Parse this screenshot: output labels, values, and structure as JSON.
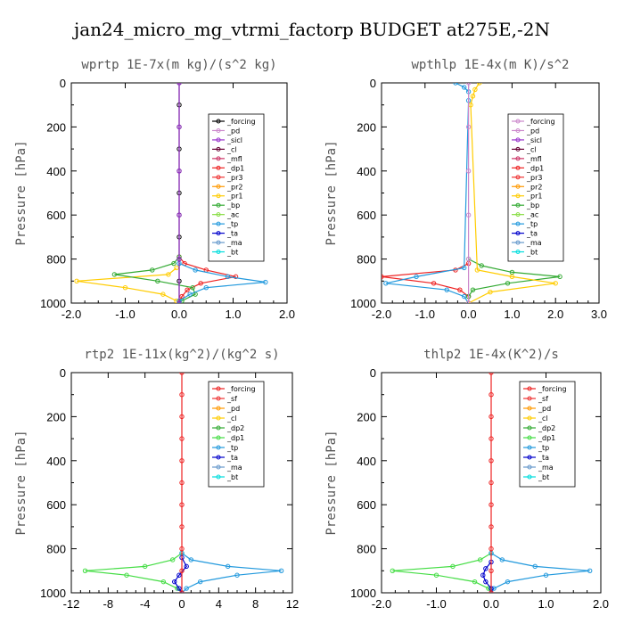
{
  "title": "jan24_micro_mg_vtrmi_factorp  BUDGET at275E,-2N",
  "chart_data": [
    {
      "type": "line",
      "panel": "wprtp",
      "title": "wprtp   1E-7x(m kg)/(s^2 kg)",
      "ylabel": "Pressure [hPa]",
      "xlim": [
        -2.0,
        2.0
      ],
      "ylim": [
        1000,
        0
      ],
      "xticks": [
        "-2.0",
        "-1.0",
        "0.0",
        "1.0",
        "2.0"
      ],
      "yticks": [
        "0",
        "200",
        "400",
        "600",
        "800",
        "1000"
      ],
      "legend": [
        "_forcing",
        "_pd",
        "_sicl",
        "_cl",
        "_mfl",
        "_dp1",
        "_pr3",
        "_pr2",
        "_pr1",
        "_bp",
        "_ac",
        "_tp",
        "_ta",
        "_ma",
        "_bt"
      ],
      "legend_colors": [
        "#000000",
        "#cc88cc",
        "#9933cc",
        "#660033",
        "#cc3366",
        "#ee2222",
        "#ee3333",
        "#ff9900",
        "#ffcc00",
        "#33aa33",
        "#88dd44",
        "#2299dd",
        "#0000cc",
        "#6699cc",
        "#00dddd"
      ],
      "series": [
        {
          "name": "_dp1",
          "color": "#ee2222",
          "p": [
            790,
            820,
            850,
            880,
            910,
            940,
            970,
            1000
          ],
          "values": [
            0.0,
            0.1,
            0.5,
            1.05,
            0.4,
            0.15,
            0.05,
            0.0
          ]
        },
        {
          "name": "_pr1",
          "color": "#ffcc00",
          "p": [
            840,
            870,
            900,
            930,
            960,
            990,
            1000
          ],
          "values": [
            -0.05,
            -0.2,
            -1.9,
            -1.0,
            -0.3,
            -0.05,
            0.0
          ]
        },
        {
          "name": "_bp",
          "color": "#33aa33",
          "p": [
            790,
            820,
            850,
            870,
            900,
            930,
            960,
            990,
            1000
          ],
          "values": [
            0.0,
            -0.1,
            -0.5,
            -1.2,
            -0.4,
            0.25,
            0.3,
            0.05,
            0.0
          ]
        },
        {
          "name": "_tp",
          "color": "#2299dd",
          "p": [
            820,
            850,
            880,
            905,
            930,
            960,
            990,
            1000
          ],
          "values": [
            0.0,
            0.3,
            0.9,
            1.6,
            0.5,
            0.2,
            0.0,
            0.0
          ]
        },
        {
          "name": "_forcing",
          "color": "#000000",
          "p": [
            0,
            100,
            200,
            300,
            400,
            500,
            600,
            700,
            800,
            900,
            1000
          ],
          "values": [
            0,
            0,
            0,
            0,
            0,
            0,
            0,
            0,
            0,
            0,
            0
          ]
        },
        {
          "name": "_sicl",
          "color": "#9933cc",
          "p": [
            0,
            200,
            400,
            600,
            800,
            1000
          ],
          "values": [
            0,
            0,
            0,
            0,
            0,
            0
          ]
        }
      ]
    },
    {
      "type": "line",
      "panel": "wpthlp",
      "title": "wpthlp   1E-4x(m K)/s^2",
      "ylabel": "Pressure [hPa]",
      "xlim": [
        -2.0,
        3.0
      ],
      "ylim": [
        1000,
        0
      ],
      "xticks": [
        "-2.0",
        "-1.0",
        "0.0",
        "1.0",
        "2.0",
        "3.0"
      ],
      "yticks": [
        "0",
        "200",
        "400",
        "600",
        "800",
        "1000"
      ],
      "legend": [
        "_forcing",
        "_pd",
        "_sicl",
        "_cl",
        "_mfl",
        "_dp1",
        "_pr3",
        "_pr2",
        "_pr1",
        "_bp",
        "_ac",
        "_tp",
        "_ta",
        "_ma",
        "_bt"
      ],
      "legend_colors": [
        "#cc88cc",
        "#cc88cc",
        "#9933cc",
        "#660033",
        "#cc3366",
        "#ee2222",
        "#ee3333",
        "#ff9900",
        "#ffcc00",
        "#33aa33",
        "#88dd44",
        "#2299dd",
        "#0000cc",
        "#6699cc",
        "#00dddd"
      ],
      "series": [
        {
          "name": "_dp1",
          "color": "#ee2222",
          "p": [
            820,
            850,
            880,
            910,
            940,
            970,
            1000
          ],
          "values": [
            0.0,
            -0.3,
            -2.0,
            -0.8,
            -0.2,
            0.0,
            0.0
          ]
        },
        {
          "name": "_tp",
          "color": "#2299dd",
          "p": [
            0,
            20,
            40,
            80,
            840,
            880,
            910,
            940,
            970,
            1000
          ],
          "values": [
            -0.3,
            -0.1,
            0.0,
            0.0,
            -0.1,
            -1.2,
            -1.9,
            -0.5,
            -0.1,
            0.0
          ]
        },
        {
          "name": "_bp",
          "color": "#33aa33",
          "p": [
            800,
            830,
            860,
            880,
            910,
            940,
            970,
            1000
          ],
          "values": [
            0.0,
            0.3,
            1.0,
            2.1,
            0.9,
            0.1,
            0.0,
            0.0
          ]
        },
        {
          "name": "_pr1",
          "color": "#ffcc00",
          "p": [
            0,
            30,
            60,
            100,
            850,
            880,
            910,
            950,
            1000
          ],
          "values": [
            0.25,
            0.15,
            0.1,
            0.05,
            0.2,
            1.0,
            2.0,
            0.5,
            0.0
          ]
        },
        {
          "name": "_forcing",
          "color": "#cc88cc",
          "p": [
            0,
            200,
            400,
            600,
            800,
            1000
          ],
          "values": [
            0,
            0,
            0,
            0,
            0,
            0
          ]
        }
      ]
    },
    {
      "type": "line",
      "panel": "rtp2",
      "title": "rtp2   1E-11x(kg^2)/(kg^2 s)",
      "ylabel": "Pressure [hPa]",
      "xlim": [
        -12,
        12
      ],
      "ylim": [
        1000,
        0
      ],
      "xticks": [
        "-12",
        "-8",
        "-4",
        "0",
        "4",
        "8",
        "12"
      ],
      "yticks": [
        "0",
        "200",
        "400",
        "600",
        "800",
        "1000"
      ],
      "legend": [
        "_forcing",
        "_sf",
        "_pd",
        "_cl",
        "_dp2",
        "_dp1",
        "_tp",
        "_ta",
        "_ma",
        "_bt"
      ],
      "legend_colors": [
        "#ee2222",
        "#ee3333",
        "#ff9900",
        "#ffcc00",
        "#33aa33",
        "#44dd44",
        "#2299dd",
        "#0000cc",
        "#6699cc",
        "#00dddd"
      ],
      "series": [
        {
          "name": "_dp1",
          "color": "#44dd44",
          "p": [
            820,
            850,
            880,
            900,
            920,
            950,
            980,
            1000
          ],
          "values": [
            0.0,
            -1.0,
            -4.0,
            -10.5,
            -6.0,
            -2.0,
            -0.5,
            0.0
          ]
        },
        {
          "name": "_tp",
          "color": "#2299dd",
          "p": [
            820,
            850,
            880,
            900,
            920,
            950,
            980,
            1000
          ],
          "values": [
            0.0,
            1.0,
            5.0,
            10.8,
            6.0,
            2.0,
            0.5,
            0.0
          ]
        },
        {
          "name": "_ta",
          "color": "#0000cc",
          "p": [
            840,
            880,
            920,
            950,
            980,
            1000
          ],
          "values": [
            0.0,
            0.5,
            -0.3,
            -0.8,
            -0.3,
            0.0
          ]
        },
        {
          "name": "_forcing",
          "color": "#ee2222",
          "p": [
            0,
            100,
            200,
            300,
            400,
            500,
            600,
            700,
            800,
            900,
            1000
          ],
          "values": [
            0,
            0,
            0,
            0,
            0,
            0,
            0,
            0,
            0,
            0,
            0
          ]
        }
      ]
    },
    {
      "type": "line",
      "panel": "thlp2",
      "title": "thlp2   1E-4x(K^2)/s",
      "ylabel": "Pressure [hPa]",
      "xlim": [
        -2.0,
        2.0
      ],
      "ylim": [
        1000,
        0
      ],
      "xticks": [
        "-2.0",
        "-1.0",
        "0.0",
        "1.0",
        "2.0"
      ],
      "yticks": [
        "0",
        "200",
        "400",
        "600",
        "800",
        "1000"
      ],
      "legend": [
        "_forcing",
        "_sf",
        "_pd",
        "_cl",
        "_dp2",
        "_dp1",
        "_tp",
        "_ta",
        "_ma",
        "_bt"
      ],
      "legend_colors": [
        "#ee2222",
        "#ee3333",
        "#ff9900",
        "#ffcc00",
        "#33aa33",
        "#44dd44",
        "#2299dd",
        "#0000cc",
        "#6699cc",
        "#00dddd"
      ],
      "series": [
        {
          "name": "_dp1",
          "color": "#44dd44",
          "p": [
            820,
            850,
            880,
            900,
            920,
            950,
            980,
            1000
          ],
          "values": [
            0.0,
            -0.2,
            -0.7,
            -1.8,
            -1.0,
            -0.3,
            -0.05,
            0.0
          ]
        },
        {
          "name": "_tp",
          "color": "#2299dd",
          "p": [
            820,
            850,
            880,
            900,
            920,
            950,
            980,
            1000
          ],
          "values": [
            0.0,
            0.2,
            0.8,
            1.8,
            1.0,
            0.3,
            0.05,
            0.0
          ]
        },
        {
          "name": "_ta",
          "color": "#0000cc",
          "p": [
            860,
            890,
            920,
            950,
            980,
            1000
          ],
          "values": [
            0.0,
            -0.1,
            -0.15,
            -0.1,
            0.0,
            0.0
          ]
        },
        {
          "name": "_forcing",
          "color": "#ee2222",
          "p": [
            0,
            100,
            200,
            300,
            400,
            500,
            600,
            700,
            800,
            900,
            1000
          ],
          "values": [
            0,
            0,
            0,
            0,
            0,
            0,
            0,
            0,
            0,
            0,
            0
          ]
        }
      ]
    }
  ]
}
